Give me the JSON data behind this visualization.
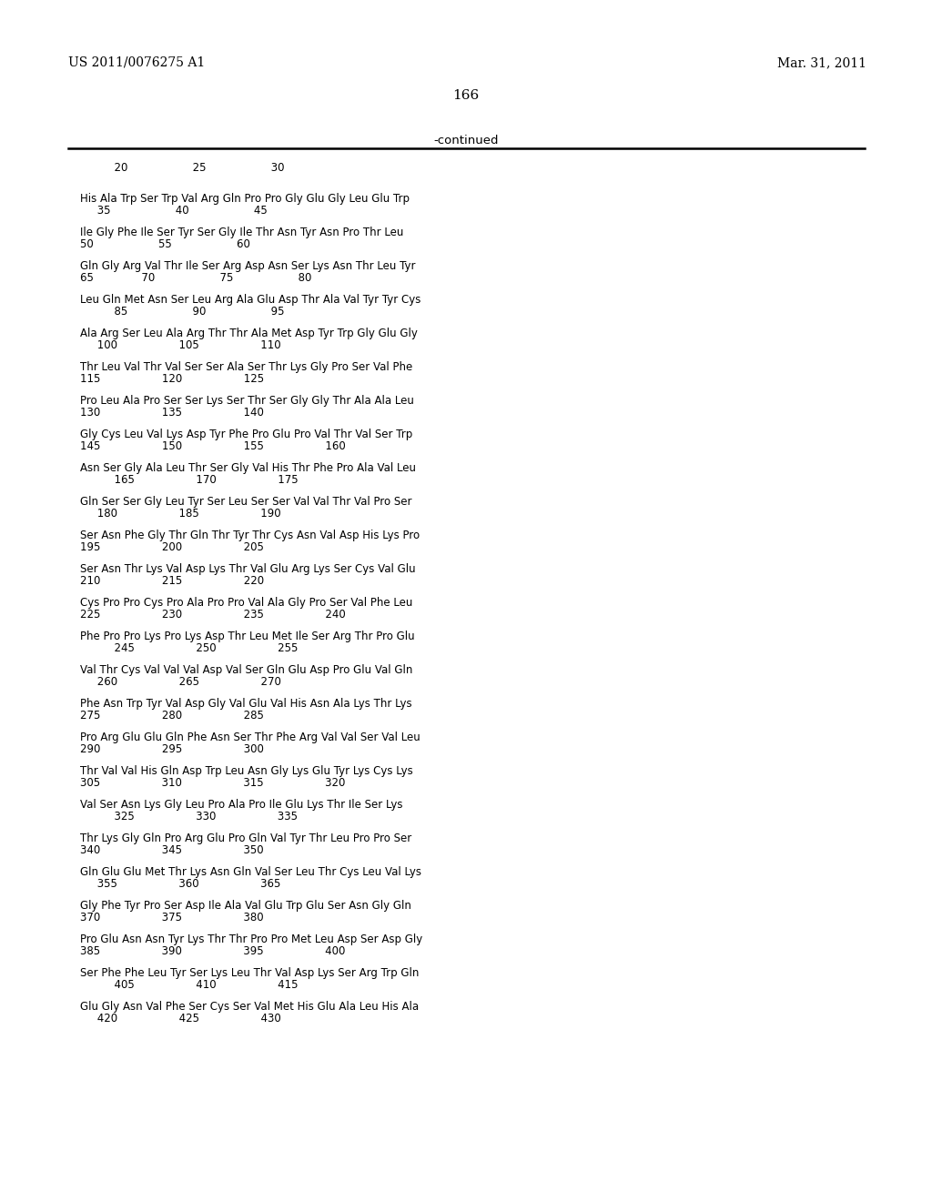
{
  "header_left": "US 2011/0076275 A1",
  "header_right": "Mar. 31, 2011",
  "page_number": "166",
  "continued_label": "-continued",
  "bg_color": "#ffffff",
  "text_color": "#000000",
  "number_line": "          20                   25                   30",
  "sequence_lines": [
    [
      "His Ala Trp Ser Trp Val Arg Gln Pro Pro Gly Glu Gly Leu Glu Trp",
      "     35                   40                   45"
    ],
    [
      "Ile Gly Phe Ile Ser Tyr Ser Gly Ile Thr Asn Tyr Asn Pro Thr Leu",
      "50                   55                   60"
    ],
    [
      "Gln Gly Arg Val Thr Ile Ser Arg Asp Asn Ser Lys Asn Thr Leu Tyr",
      "65              70                   75                   80"
    ],
    [
      "Leu Gln Met Asn Ser Leu Arg Ala Glu Asp Thr Ala Val Tyr Tyr Cys",
      "          85                   90                   95"
    ],
    [
      "Ala Arg Ser Leu Ala Arg Thr Thr Ala Met Asp Tyr Trp Gly Glu Gly",
      "     100                  105                  110"
    ],
    [
      "Thr Leu Val Thr Val Ser Ser Ala Ser Thr Lys Gly Pro Ser Val Phe",
      "115                  120                  125"
    ],
    [
      "Pro Leu Ala Pro Ser Ser Lys Ser Thr Ser Gly Gly Thr Ala Ala Leu",
      "130                  135                  140"
    ],
    [
      "Gly Cys Leu Val Lys Asp Tyr Phe Pro Glu Pro Val Thr Val Ser Trp",
      "145                  150                  155                  160"
    ],
    [
      "Asn Ser Gly Ala Leu Thr Ser Gly Val His Thr Phe Pro Ala Val Leu",
      "          165                  170                  175"
    ],
    [
      "Gln Ser Ser Gly Leu Tyr Ser Leu Ser Ser Val Val Thr Val Pro Ser",
      "     180                  185                  190"
    ],
    [
      "Ser Asn Phe Gly Thr Gln Thr Tyr Thr Cys Asn Val Asp His Lys Pro",
      "195                  200                  205"
    ],
    [
      "Ser Asn Thr Lys Val Asp Lys Thr Val Glu Arg Lys Ser Cys Val Glu",
      "210                  215                  220"
    ],
    [
      "Cys Pro Pro Cys Pro Ala Pro Pro Val Ala Gly Pro Ser Val Phe Leu",
      "225                  230                  235                  240"
    ],
    [
      "Phe Pro Pro Lys Pro Lys Asp Thr Leu Met Ile Ser Arg Thr Pro Glu",
      "          245                  250                  255"
    ],
    [
      "Val Thr Cys Val Val Val Asp Val Ser Gln Glu Asp Pro Glu Val Gln",
      "     260                  265                  270"
    ],
    [
      "Phe Asn Trp Tyr Val Asp Gly Val Glu Val His Asn Ala Lys Thr Lys",
      "275                  280                  285"
    ],
    [
      "Pro Arg Glu Glu Gln Phe Asn Ser Thr Phe Arg Val Val Ser Val Leu",
      "290                  295                  300"
    ],
    [
      "Thr Val Val His Gln Asp Trp Leu Asn Gly Lys Glu Tyr Lys Cys Lys",
      "305                  310                  315                  320"
    ],
    [
      "Val Ser Asn Lys Gly Leu Pro Ala Pro Ile Glu Lys Thr Ile Ser Lys",
      "          325                  330                  335"
    ],
    [
      "Thr Lys Gly Gln Pro Arg Glu Pro Gln Val Tyr Thr Leu Pro Pro Ser",
      "340                  345                  350"
    ],
    [
      "Gln Glu Glu Met Thr Lys Asn Gln Val Ser Leu Thr Cys Leu Val Lys",
      "     355                  360                  365"
    ],
    [
      "Gly Phe Tyr Pro Ser Asp Ile Ala Val Glu Trp Glu Ser Asn Gly Gln",
      "370                  375                  380"
    ],
    [
      "Pro Glu Asn Asn Tyr Lys Thr Thr Pro Pro Met Leu Asp Ser Asp Gly",
      "385                  390                  395                  400"
    ],
    [
      "Ser Phe Phe Leu Tyr Ser Lys Leu Thr Val Asp Lys Ser Arg Trp Gln",
      "          405                  410                  415"
    ],
    [
      "Glu Gly Asn Val Phe Ser Cys Ser Val Met His Glu Ala Leu His Ala",
      "     420                  425                  430"
    ]
  ]
}
